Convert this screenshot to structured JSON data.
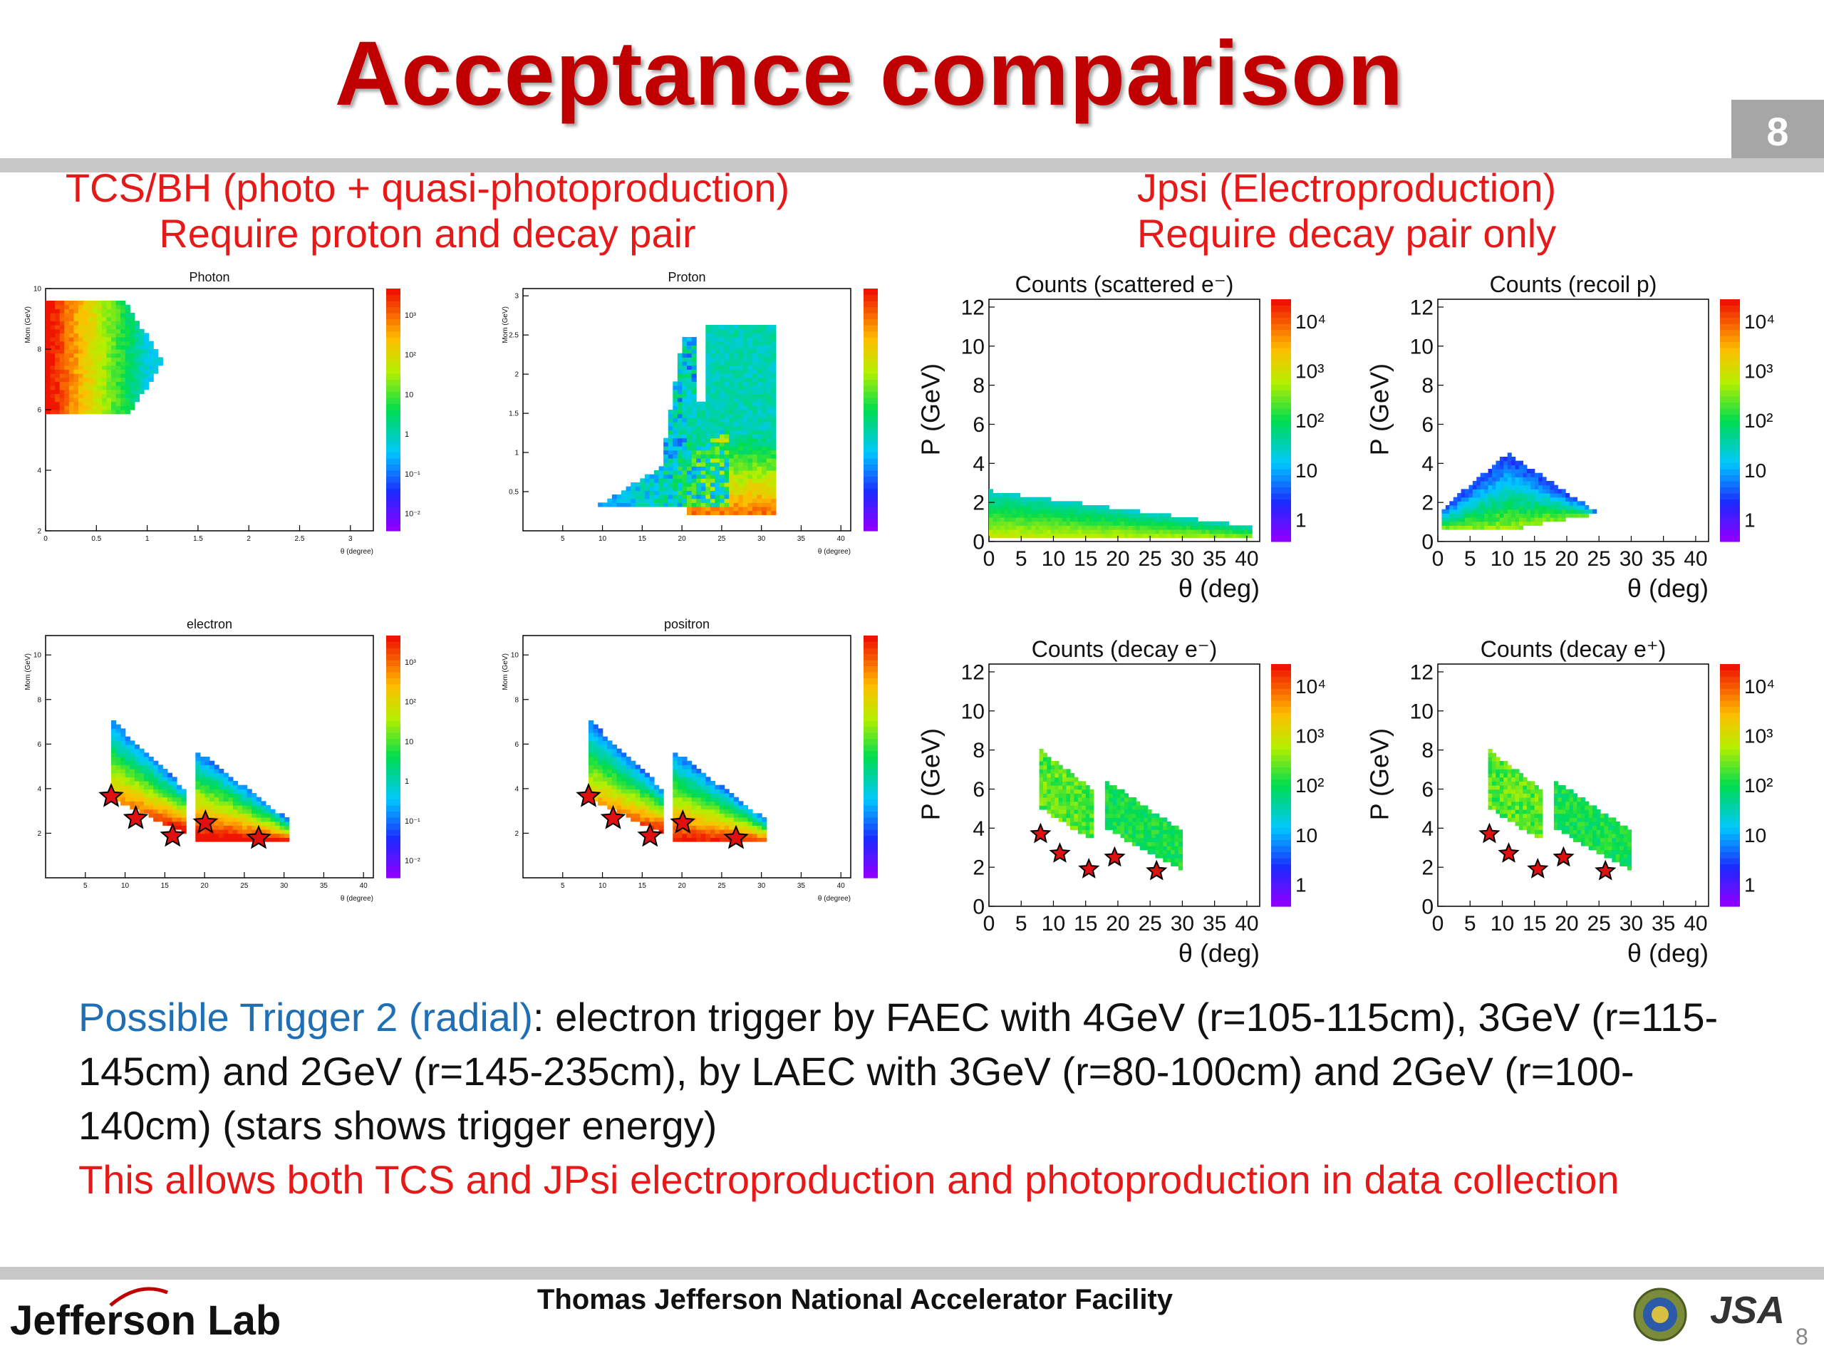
{
  "slide": {
    "title": "Acceptance comparison",
    "page_number": "8",
    "left_heading": [
      "TCS/BH (photo + quasi-photoproduction)",
      "Require proton and decay pair"
    ],
    "right_heading": [
      "Jpsi (Electroproduction)",
      "Require decay pair only"
    ]
  },
  "plots": [
    {
      "id": "photon",
      "title": "Photon",
      "xlabel": "θ (degree)",
      "ylabel": "Mom (GeV)",
      "xticks": [
        "0",
        "0.5",
        "1",
        "1.5",
        "2",
        "2.5",
        "3"
      ],
      "yticks": [
        "2",
        "4",
        "6",
        "8",
        "10"
      ],
      "zticks": [
        "10³",
        "10²",
        "10",
        "1",
        "10⁻¹",
        "10⁻²"
      ]
    },
    {
      "id": "proton",
      "title": "Proton",
      "xlabel": "θ (degree)",
      "ylabel": "Mom (GeV)",
      "xticks": [
        "5",
        "10",
        "15",
        "20",
        "25",
        "30",
        "35",
        "40"
      ],
      "yticks": [
        "0.5",
        "1",
        "1.5",
        "2",
        "2.5",
        "3"
      ],
      "zticks": []
    },
    {
      "id": "electron",
      "title": "electron",
      "xlabel": "θ (degree)",
      "ylabel": "Mom (GeV)",
      "xticks": [
        "5",
        "10",
        "15",
        "20",
        "25",
        "30",
        "35",
        "40"
      ],
      "yticks": [
        "2",
        "4",
        "6",
        "8",
        "10"
      ],
      "zticks": [
        "10³",
        "10²",
        "10",
        "1",
        "10⁻¹",
        "10⁻²"
      ]
    },
    {
      "id": "positron",
      "title": "positron",
      "xlabel": "θ (degree)",
      "ylabel": "Mom (GeV)",
      "xticks": [
        "5",
        "10",
        "15",
        "20",
        "25",
        "30",
        "35",
        "40"
      ],
      "yticks": [
        "2",
        "4",
        "6",
        "8",
        "10"
      ],
      "zticks": []
    },
    {
      "id": "scat_e",
      "title": "Counts (scattered e⁻)",
      "xlabel": "θ (deg)",
      "ylabel": "P (GeV)",
      "xticks": [
        "0",
        "5",
        "10",
        "15",
        "20",
        "25",
        "30",
        "35",
        "40"
      ],
      "yticks": [
        "0",
        "2",
        "4",
        "6",
        "8",
        "10",
        "12"
      ],
      "zticks": [
        "10⁴",
        "10³",
        "10²",
        "10",
        "1"
      ]
    },
    {
      "id": "recoil_p",
      "title": "Counts (recoil p)",
      "xlabel": "θ (deg)",
      "ylabel": "P (GeV)",
      "xticks": [
        "0",
        "5",
        "10",
        "15",
        "20",
        "25",
        "30",
        "35",
        "40"
      ],
      "yticks": [
        "0",
        "2",
        "4",
        "6",
        "8",
        "10",
        "12"
      ],
      "zticks": [
        "10⁴",
        "10³",
        "10²",
        "10",
        "1"
      ]
    },
    {
      "id": "decay_em",
      "title": "Counts (decay e⁻)",
      "xlabel": "θ (deg)",
      "ylabel": "P (GeV)",
      "xticks": [
        "0",
        "5",
        "10",
        "15",
        "20",
        "25",
        "30",
        "35",
        "40"
      ],
      "yticks": [
        "0",
        "2",
        "4",
        "6",
        "8",
        "10",
        "12"
      ],
      "zticks": [
        "10⁴",
        "10³",
        "10²",
        "10",
        "1"
      ]
    },
    {
      "id": "decay_ep",
      "title": "Counts (decay e⁺)",
      "xlabel": "θ (deg)",
      "ylabel": "P (GeV)",
      "xticks": [
        "0",
        "5",
        "10",
        "15",
        "20",
        "25",
        "30",
        "35",
        "40"
      ],
      "yticks": [
        "0",
        "2",
        "4",
        "6",
        "8",
        "10",
        "12"
      ],
      "zticks": [
        "10⁴",
        "10³",
        "10²",
        "10",
        "1"
      ]
    }
  ],
  "trigger_stars": [
    [
      8,
      3.7
    ],
    [
      11,
      2.7
    ],
    [
      15.5,
      1.9
    ],
    [
      19.5,
      2.5
    ],
    [
      26,
      1.8
    ]
  ],
  "body": {
    "trigger_label": "Possible Trigger 2 (radial)",
    "trigger_text": ": electron trigger by FAEC with 4GeV (r=105-115cm), 3GeV (r=115-145cm) and 2GeV (r=145-235cm), by LAEC with 3GeV (r=80-100cm) and 2GeV (r=100-140cm) (stars shows trigger energy)",
    "conclusion": "This allows both TCS and JPsi electroproduction and photoproduction in data collection"
  },
  "footer": {
    "facility": "Thomas Jefferson National Accelerator Facility",
    "logo_left": "Jefferson Lab",
    "logo_right": "JSA",
    "page_small": "8"
  },
  "colors": {
    "title": "#c00000",
    "heading": "#e61919",
    "trigger_label": "#1f6fb5"
  }
}
